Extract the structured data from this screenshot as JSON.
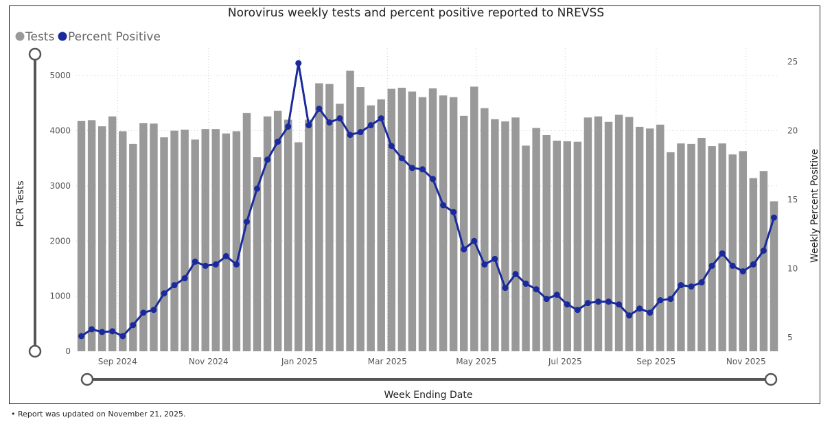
{
  "chart_data": {
    "type": "bar",
    "title": "Norovirus weekly tests and percent positive reported to NREVSS",
    "legend": [
      {
        "label": "Tests",
        "color": "#999999"
      },
      {
        "label": "Percent Positive",
        "color": "#1A2A9C"
      }
    ],
    "xlabel": "Week Ending Date",
    "ylabel": "PCR Tests",
    "y2label": "Weekly Percent Positive",
    "ylim": [
      0,
      5500
    ],
    "y2lim": [
      4,
      26
    ],
    "yticks": [
      "0",
      "1000",
      "2000",
      "3000",
      "4000",
      "5000"
    ],
    "y2ticks": [
      "5",
      "10",
      "15",
      "20",
      "25"
    ],
    "x_tick_labels": [
      {
        "label": "Sep 2024",
        "week": 4
      },
      {
        "label": "Nov 2024",
        "week": 12.8
      },
      {
        "label": "Jan 2025",
        "week": 21.6
      },
      {
        "label": "Mar 2025",
        "week": 30.1
      },
      {
        "label": "May 2025",
        "week": 38.7
      },
      {
        "label": "Jul 2025",
        "week": 47.3
      },
      {
        "label": "Sep 2025",
        "week": 56.1
      },
      {
        "label": "Nov 2025",
        "week": 64.8
      }
    ],
    "series": [
      {
        "name": "Tests",
        "kind": "bar",
        "values": [
          4180,
          4190,
          4080,
          4260,
          3990,
          3760,
          4140,
          4130,
          3880,
          4000,
          4020,
          3840,
          4030,
          4030,
          3950,
          3990,
          4320,
          3520,
          4260,
          4360,
          4200,
          3790,
          4200,
          4860,
          4850,
          4490,
          5090,
          4790,
          4460,
          4570,
          4760,
          4780,
          4710,
          4610,
          4770,
          4640,
          4610,
          4270,
          4800,
          4410,
          4210,
          4170,
          4240,
          3730,
          4050,
          3920,
          3820,
          3810,
          3800,
          4240,
          4260,
          4160,
          4290,
          4250,
          4070,
          4040,
          4110,
          3610,
          3770,
          3760,
          3870,
          3720,
          3770,
          3570,
          3630,
          3140,
          3270,
          2720
        ]
      },
      {
        "name": "Percent Positive",
        "kind": "line",
        "values": [
          5.1,
          5.6,
          5.4,
          5.45,
          5.1,
          5.9,
          6.8,
          7.0,
          8.2,
          8.8,
          9.3,
          10.5,
          10.2,
          10.3,
          10.9,
          10.3,
          13.4,
          15.8,
          17.9,
          19.2,
          20.3,
          24.9,
          20.4,
          21.6,
          20.6,
          20.9,
          19.7,
          19.9,
          20.4,
          20.9,
          18.9,
          18.0,
          17.3,
          17.2,
          16.5,
          14.6,
          14.1,
          11.4,
          12.0,
          10.3,
          10.7,
          8.6,
          9.6,
          8.9,
          8.5,
          7.8,
          8.1,
          7.4,
          7.0,
          7.5,
          7.6,
          7.6,
          7.4,
          6.6,
          7.1,
          6.8,
          7.7,
          7.8,
          8.8,
          8.7,
          9.0,
          10.2,
          11.1,
          10.2,
          9.8,
          10.3,
          11.3,
          13.7
        ]
      }
    ]
  },
  "footnote": "• Report was updated on November 21, 2025."
}
